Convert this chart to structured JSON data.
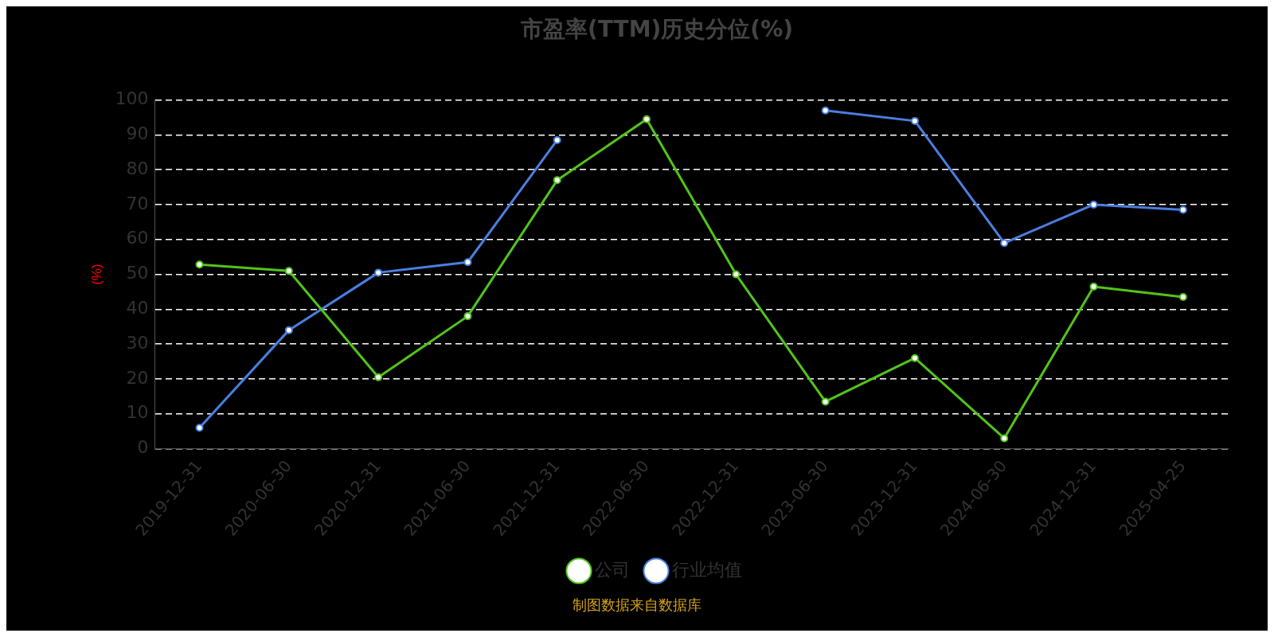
{
  "chart_data": {
    "type": "line",
    "title": "市盈率(TTM)历史分位(%)",
    "ylabel": "(%)",
    "categories": [
      "2019-12-31",
      "2020-06-30",
      "2020-12-31",
      "2021-06-30",
      "2021-12-31",
      "2022-06-30",
      "2022-12-31",
      "2023-06-30",
      "2023-12-31",
      "2024-06-30",
      "2024-12-31",
      "2025-04-25"
    ],
    "series": [
      {
        "name": "公司",
        "color": "#52c41a",
        "values": [
          52.8,
          51,
          20.5,
          38,
          77,
          94.5,
          50,
          13.5,
          26,
          3,
          46.5,
          43.5
        ]
      },
      {
        "name": "行业均值",
        "color": "#4a7fe0",
        "values": [
          6,
          34,
          50.5,
          53.5,
          88.5,
          null,
          null,
          97,
          94,
          59,
          70,
          68.5
        ]
      }
    ],
    "ylim": [
      0,
      100
    ],
    "yticks": [
      0,
      10,
      20,
      30,
      40,
      50,
      60,
      70,
      80,
      90,
      100
    ],
    "grid": "y",
    "legend": "bottom",
    "marker": "circle",
    "line_style": "solid",
    "annotations": [
      "制图数据来自数据库"
    ]
  }
}
